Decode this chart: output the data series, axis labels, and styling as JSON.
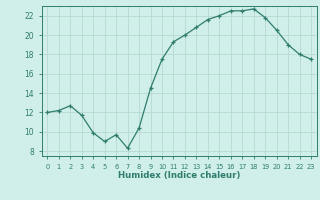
{
  "x": [
    0,
    1,
    2,
    3,
    4,
    5,
    6,
    7,
    8,
    9,
    10,
    11,
    12,
    13,
    14,
    15,
    16,
    17,
    18,
    19,
    20,
    21,
    22,
    23
  ],
  "y": [
    12.0,
    12.2,
    12.7,
    11.7,
    9.9,
    9.0,
    9.7,
    8.3,
    10.4,
    14.5,
    17.5,
    19.3,
    20.0,
    20.8,
    21.6,
    22.0,
    22.5,
    22.5,
    22.7,
    21.8,
    20.5,
    19.0,
    18.0,
    17.5
  ],
  "line_color": "#2e7d6e",
  "marker": "+",
  "marker_size": 3,
  "bg_color": "#d0eeea",
  "grid_color": "#b8d8d2",
  "axis_label_color": "#2e7d6e",
  "tick_color": "#2e7d6e",
  "xlabel": "Humidex (Indice chaleur)",
  "xlim": [
    -0.5,
    23.5
  ],
  "ylim": [
    7.5,
    23.0
  ],
  "yticks": [
    8,
    10,
    12,
    14,
    16,
    18,
    20,
    22
  ],
  "xticks": [
    0,
    1,
    2,
    3,
    4,
    5,
    6,
    7,
    8,
    9,
    10,
    11,
    12,
    13,
    14,
    15,
    16,
    17,
    18,
    19,
    20,
    21,
    22,
    23
  ],
  "xtick_labels": [
    "0",
    "1",
    "2",
    "3",
    "4",
    "5",
    "6",
    "7",
    "8",
    "9",
    "10",
    "11",
    "12",
    "13",
    "14",
    "15",
    "16",
    "17",
    "18",
    "19",
    "20",
    "21",
    "22",
    "23"
  ]
}
